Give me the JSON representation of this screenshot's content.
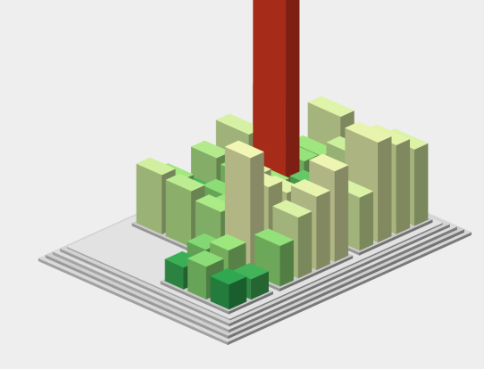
{
  "chart_data": {
    "type": "bar",
    "subtype": "3d-treemap-city",
    "title": "",
    "xlabel": "",
    "ylabel": "",
    "colors": {
      "background": "#eeeeee",
      "low": "#1e9e4a",
      "mid": "#9ee77e",
      "high": "#f7f7b8",
      "peak": "#e03a22"
    },
    "groups": [
      {
        "name": "",
        "bars": [
          {
            "value": 1.6,
            "color_value": 0.05
          },
          {
            "value": 1.3,
            "color_value": 0.1
          },
          {
            "value": 2.1,
            "color_value": 0.3
          },
          {
            "value": 2.5,
            "color_value": 0.35
          },
          {
            "value": 1.4,
            "color_value": 0.08
          },
          {
            "value": 1.9,
            "color_value": 0.28
          }
        ]
      },
      {
        "name": "",
        "bars": [
          {
            "value": 2.6,
            "color_value": 0.32
          },
          {
            "value": 3.9,
            "color_value": 0.55
          },
          {
            "value": 4.7,
            "color_value": 0.6
          },
          {
            "value": 5.8,
            "color_value": 0.62
          },
          {
            "value": 7.4,
            "color_value": 0.63
          },
          {
            "value": 5.0,
            "color_value": 0.6
          },
          {
            "value": 4.1,
            "color_value": 0.58
          },
          {
            "value": 2.6,
            "color_value": 0.18
          },
          {
            "value": 3.1,
            "color_value": 0.4
          },
          {
            "value": 2.7,
            "color_value": 0.34
          },
          {
            "value": 4.4,
            "color_value": 0.57
          },
          {
            "value": 3.3,
            "color_value": 0.36
          },
          {
            "value": 3.6,
            "color_value": 0.45
          },
          {
            "value": 1.0,
            "color_value": 0.06
          },
          {
            "value": 2.2,
            "color_value": 0.3
          },
          {
            "value": 3.0,
            "color_value": 0.33
          },
          {
            "value": 3.8,
            "color_value": 0.52
          },
          {
            "value": 2.9,
            "color_value": 0.36
          },
          {
            "value": 1.7,
            "color_value": 0.12
          },
          {
            "value": 3.3,
            "color_value": 0.42
          }
        ]
      },
      {
        "name": "",
        "bars": [
          {
            "value": 3.4,
            "color_value": 0.55
          },
          {
            "value": 6.4,
            "color_value": 0.6
          },
          {
            "value": 5.7,
            "color_value": 0.58
          },
          {
            "value": 4.9,
            "color_value": 0.56
          },
          {
            "value": 2.8,
            "color_value": 0.2
          },
          {
            "value": 2.4,
            "color_value": 0.15
          },
          {
            "value": 3.9,
            "color_value": 0.5
          },
          {
            "value": 2.2,
            "color_value": 0.26
          },
          {
            "value": 15.2,
            "color_value": 1.0
          },
          {
            "value": 3.1,
            "color_value": 0.33
          },
          {
            "value": 2.9,
            "color_value": 0.35
          },
          {
            "value": 4.9,
            "color_value": 0.57
          },
          {
            "value": 4.3,
            "color_value": 0.54
          },
          {
            "value": 2.6,
            "color_value": 0.3
          },
          {
            "value": 5.6,
            "color_value": 0.6
          }
        ]
      }
    ]
  }
}
